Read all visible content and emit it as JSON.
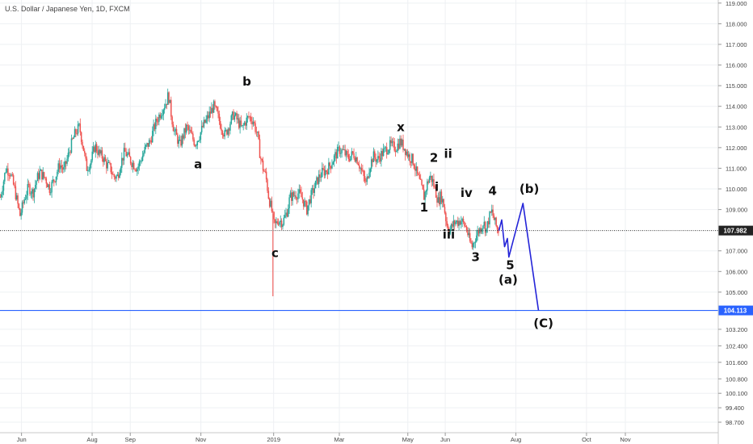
{
  "chart_data": {
    "type": "candlestick",
    "title": "U.S. Dollar / Japanese Yen, 1D, FXCM",
    "ylim": [
      98.5,
      119.6
    ],
    "y_ticks": [
      "98.700",
      "99.400",
      "100.100",
      "100.800",
      "101.600",
      "102.400",
      "103.200",
      "104.113",
      "105.000",
      "106.000",
      "107.000",
      "107.982",
      "109.000",
      "110.000",
      "111.000",
      "112.000",
      "113.000",
      "114.000",
      "115.000",
      "116.000",
      "117.000",
      "118.000",
      "119.000"
    ],
    "y_tick_values": [
      98.7,
      99.4,
      100.1,
      100.8,
      101.6,
      102.4,
      103.2,
      104.113,
      105.0,
      106.0,
      107.0,
      107.982,
      109.0,
      110.0,
      111.0,
      112.0,
      113.0,
      114.0,
      115.0,
      116.0,
      117.0,
      118.0,
      119.0
    ],
    "x_ticks": [
      "Jun",
      "Aug",
      "Sep",
      "Nov",
      "2019",
      "Mar",
      "May",
      "Jun",
      "Aug",
      "Oct",
      "Nov"
    ],
    "x_tick_days": [
      30,
      130,
      184,
      284,
      387,
      480,
      577,
      630,
      730,
      830,
      885
    ],
    "current_price": "107.982",
    "current_price_value": 107.982,
    "target_price": "104.113",
    "target_price_value": 104.113,
    "up_color": "#26a69a",
    "down_color": "#ef5350",
    "projection_color": "#2424d8",
    "target_color": "#2962ff",
    "price_path": [
      [
        0,
        109.6
      ],
      [
        8,
        111.0
      ],
      [
        14,
        110.8
      ],
      [
        20,
        110.0
      ],
      [
        28,
        108.7
      ],
      [
        34,
        109.5
      ],
      [
        40,
        110.1
      ],
      [
        46,
        109.8
      ],
      [
        52,
        110.5
      ],
      [
        56,
        110.8
      ],
      [
        64,
        110.5
      ],
      [
        70,
        110.0
      ],
      [
        78,
        110.6
      ],
      [
        84,
        111.2
      ],
      [
        90,
        110.9
      ],
      [
        96,
        111.6
      ],
      [
        100,
        112.1
      ],
      [
        106,
        112.7
      ],
      [
        112,
        113.0
      ],
      [
        118,
        111.9
      ],
      [
        122,
        111.0
      ],
      [
        128,
        111.3
      ],
      [
        134,
        112.1
      ],
      [
        140,
        111.7
      ],
      [
        146,
        111.5
      ],
      [
        150,
        111.2
      ],
      [
        156,
        111.0
      ],
      [
        160,
        110.6
      ],
      [
        166,
        110.6
      ],
      [
        170,
        111.2
      ],
      [
        176,
        111.8
      ],
      [
        180,
        111.6
      ],
      [
        186,
        111.3
      ],
      [
        194,
        111.0
      ],
      [
        200,
        111.5
      ],
      [
        206,
        112.0
      ],
      [
        212,
        112.3
      ],
      [
        218,
        113.0
      ],
      [
        224,
        113.5
      ],
      [
        230,
        113.9
      ],
      [
        236,
        114.3
      ],
      [
        238,
        114.6
      ],
      [
        242,
        113.6
      ],
      [
        246,
        112.8
      ],
      [
        250,
        112.5
      ],
      [
        254,
        112.1
      ],
      [
        258,
        112.5
      ],
      [
        264,
        113.0
      ],
      [
        270,
        112.6
      ],
      [
        276,
        112.2
      ],
      [
        282,
        112.6
      ],
      [
        288,
        113.1
      ],
      [
        296,
        113.6
      ],
      [
        302,
        114.0
      ],
      [
        306,
        113.7
      ],
      [
        312,
        113.1
      ],
      [
        318,
        112.6
      ],
      [
        324,
        113.1
      ],
      [
        330,
        113.6
      ],
      [
        336,
        113.3
      ],
      [
        342,
        112.9
      ],
      [
        346,
        113.2
      ],
      [
        352,
        113.5
      ],
      [
        358,
        113.3
      ],
      [
        364,
        112.6
      ],
      [
        368,
        111.6
      ],
      [
        372,
        111.0
      ],
      [
        376,
        110.6
      ],
      [
        380,
        109.6
      ],
      [
        384,
        109.0
      ],
      [
        388,
        108.2
      ],
      [
        394,
        108.5
      ],
      [
        400,
        108.4
      ],
      [
        406,
        108.9
      ],
      [
        410,
        109.6
      ],
      [
        416,
        109.7
      ],
      [
        422,
        109.8
      ],
      [
        428,
        109.5
      ],
      [
        434,
        109.0
      ],
      [
        438,
        109.5
      ],
      [
        444,
        110.0
      ],
      [
        450,
        110.5
      ],
      [
        456,
        110.8
      ],
      [
        462,
        110.9
      ],
      [
        468,
        111.2
      ],
      [
        474,
        111.6
      ],
      [
        480,
        111.9
      ],
      [
        486,
        111.8
      ],
      [
        492,
        111.5
      ],
      [
        500,
        111.7
      ],
      [
        506,
        111.4
      ],
      [
        512,
        110.8
      ],
      [
        518,
        110.2
      ],
      [
        522,
        111.0
      ],
      [
        528,
        111.6
      ],
      [
        534,
        111.4
      ],
      [
        540,
        111.7
      ],
      [
        546,
        111.9
      ],
      [
        552,
        112.1
      ],
      [
        560,
        112.0
      ],
      [
        566,
        112.3
      ],
      [
        572,
        112.0
      ],
      [
        578,
        111.6
      ],
      [
        584,
        111.4
      ],
      [
        590,
        110.7
      ],
      [
        596,
        110.1
      ],
      [
        600,
        109.6
      ],
      [
        604,
        110.2
      ],
      [
        608,
        110.6
      ],
      [
        612,
        110.4
      ],
      [
        616,
        109.9
      ],
      [
        620,
        109.4
      ],
      [
        624,
        109.7
      ],
      [
        628,
        109.2
      ],
      [
        632,
        108.3
      ],
      [
        636,
        108.0
      ],
      [
        640,
        108.2
      ],
      [
        644,
        108.4
      ],
      [
        648,
        108.4
      ],
      [
        652,
        108.5
      ],
      [
        656,
        108.3
      ],
      [
        660,
        108.1
      ],
      [
        664,
        107.5
      ],
      [
        668,
        107.2
      ],
      [
        672,
        107.6
      ],
      [
        676,
        107.9
      ],
      [
        680,
        108.1
      ],
      [
        684,
        108.4
      ],
      [
        688,
        108.0
      ],
      [
        692,
        108.6
      ],
      [
        696,
        108.9
      ],
      [
        700,
        108.4
      ],
      [
        704,
        108.0
      ],
      [
        706,
        107.98
      ]
    ],
    "spike_low_day": 386,
    "spike_low_value": 104.8,
    "projection": [
      [
        706,
        107.98
      ],
      [
        710,
        108.5
      ],
      [
        714,
        107.2
      ],
      [
        718,
        107.6
      ],
      [
        720,
        106.7
      ],
      [
        740,
        109.3
      ],
      [
        762,
        104.113
      ]
    ],
    "annotations": [
      "a",
      "b",
      "c",
      "x",
      "1",
      "2",
      "i",
      "ii",
      "iii",
      "iv",
      "3",
      "4",
      "5",
      "(a)",
      "(b)",
      "(C)"
    ],
    "annotation_points": [
      [
        280,
        111.0
      ],
      [
        349,
        115.0
      ],
      [
        389,
        106.7
      ],
      [
        567,
        112.8
      ],
      [
        600,
        108.9
      ],
      [
        614,
        111.3
      ],
      [
        618,
        109.9
      ],
      [
        634,
        111.5
      ],
      [
        635,
        107.6
      ],
      [
        660,
        109.6
      ],
      [
        673,
        106.5
      ],
      [
        697,
        109.7
      ],
      [
        722,
        106.1
      ],
      [
        719,
        105.4
      ],
      [
        749,
        109.8
      ],
      [
        769,
        103.3
      ]
    ]
  }
}
